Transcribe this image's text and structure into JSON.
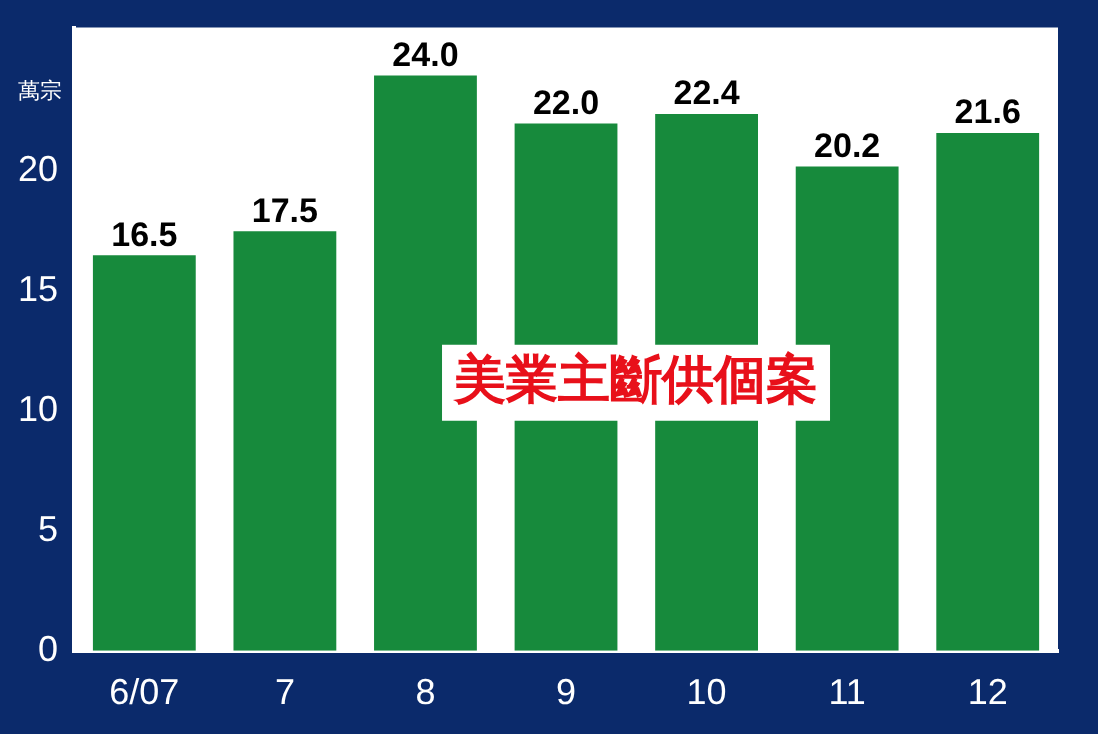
{
  "chart_data": {
    "type": "bar",
    "title": "美業主斷供個案",
    "ylabel": "萬宗",
    "categories": [
      "6/07",
      "7",
      "8",
      "9",
      "10",
      "11",
      "12"
    ],
    "values": [
      16.5,
      17.5,
      24.0,
      22.0,
      22.4,
      20.2,
      21.6
    ],
    "value_labels": [
      "16.5",
      "17.5",
      "24.0",
      "22.0",
      "22.4",
      "20.2",
      "21.6"
    ],
    "color": "#178a3c",
    "ylim": [
      0,
      26
    ],
    "yticks": [
      0,
      5,
      10,
      15,
      20
    ],
    "grid": false,
    "legend": false
  }
}
